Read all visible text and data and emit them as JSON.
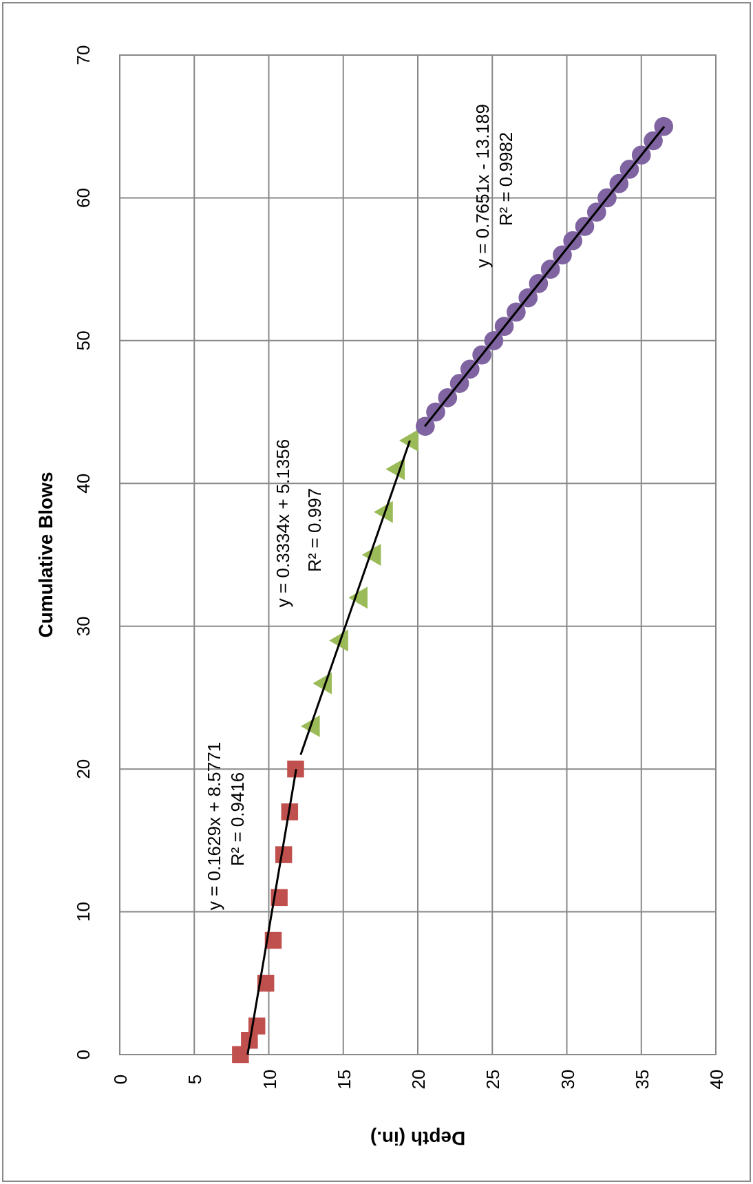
{
  "chart_data": {
    "type": "scatter",
    "xlabel": "Depth (in.)",
    "ylabel": "Cumulative Blows",
    "xlim": [
      0,
      40
    ],
    "ylim": [
      0,
      70
    ],
    "xticks": [
      0,
      5,
      10,
      15,
      20,
      25,
      30,
      35,
      40
    ],
    "yticks": [
      0,
      10,
      20,
      30,
      40,
      50,
      60,
      70
    ],
    "grid": true,
    "series": [
      {
        "marker": "square",
        "color": "#c0504d",
        "x": [
          8.1,
          8.7,
          9.2,
          9.8,
          10.3,
          10.7,
          11,
          11.4,
          11.8
        ],
        "values": [
          0,
          1,
          2,
          5,
          8,
          11,
          14,
          17,
          20
        ]
      },
      {
        "marker": "triangle",
        "color": "#9bbb59",
        "x": [
          13,
          13.8,
          14.9,
          16.2,
          17.1,
          17.9,
          18.7,
          19.6
        ],
        "values": [
          23,
          26,
          29,
          32,
          35,
          38,
          41,
          43
        ]
      },
      {
        "marker": "circle",
        "color": "#8064a2",
        "x": [
          20.5,
          21.2,
          22,
          22.8,
          23.5,
          24.3,
          25.1,
          25.8,
          26.6,
          27.4,
          28.1,
          28.9,
          29.7,
          30.4,
          31.2,
          32,
          32.7,
          33.5,
          34.2,
          35,
          35.8,
          36.5
        ],
        "values": [
          44,
          45,
          46,
          47,
          48,
          49,
          50,
          51,
          52,
          53,
          54,
          55,
          56,
          57,
          58,
          59,
          60,
          61,
          62,
          63,
          64,
          65
        ]
      },
      {
        "type": "line",
        "color": "#000000",
        "x": [
          8.58,
          11.84
        ],
        "values": [
          0,
          20
        ]
      },
      {
        "type": "line",
        "color": "#000000",
        "x": [
          12.14,
          19.47
        ],
        "values": [
          21,
          43
        ]
      },
      {
        "type": "line",
        "color": "#000000",
        "x": [
          20.47,
          36.54
        ],
        "values": [
          44,
          65
        ]
      }
    ],
    "annotations": [
      "y = 0.1629x + 8.5771",
      "R² = 0.9416",
      "y = 0.3334x + 5.1356",
      "R² = 0.997",
      "y = 0.7651x - 13.189",
      "R² = 0.9982"
    ]
  }
}
